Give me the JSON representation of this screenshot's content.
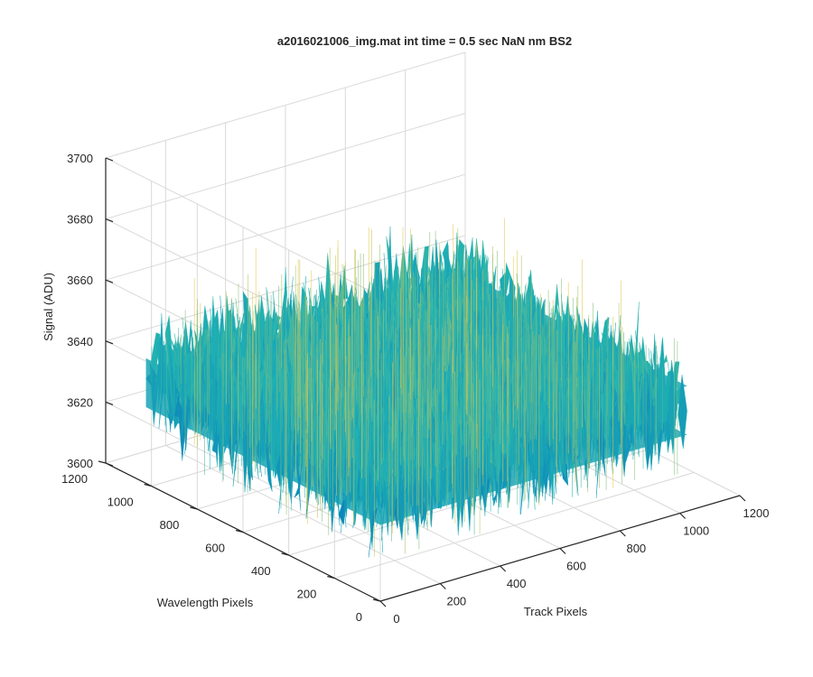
{
  "chart_data": {
    "type": "surface",
    "title": "a2016021006_img.mat int time = 0.5 sec  NaN nm BS2",
    "xlabel": "Track Pixels",
    "ylabel": "Wavelength Pixels",
    "zlabel": "Signal (ADU)",
    "xlim": [
      0,
      1200
    ],
    "ylim": [
      0,
      1200
    ],
    "zlim": [
      3600,
      3700
    ],
    "x_ticks": [
      "0",
      "200",
      "400",
      "600",
      "800",
      "1000",
      "1200"
    ],
    "y_ticks": [
      "0",
      "200",
      "400",
      "600",
      "800",
      "1000",
      "1200"
    ],
    "z_ticks": [
      "3600",
      "3620",
      "3640",
      "3660",
      "3680",
      "3700"
    ],
    "grid": true,
    "colormap": "parula",
    "surface": {
      "x_extent": [
        0,
        1024
      ],
      "y_extent": [
        0,
        1024
      ],
      "mean": 3635,
      "noise_range": [
        3612,
        3668
      ]
    }
  },
  "colors": {
    "low": "#0072bd",
    "mid": "#21b3b3",
    "high": "#e6c84a",
    "axis": "#262626",
    "grid": "#d9d9d9"
  }
}
